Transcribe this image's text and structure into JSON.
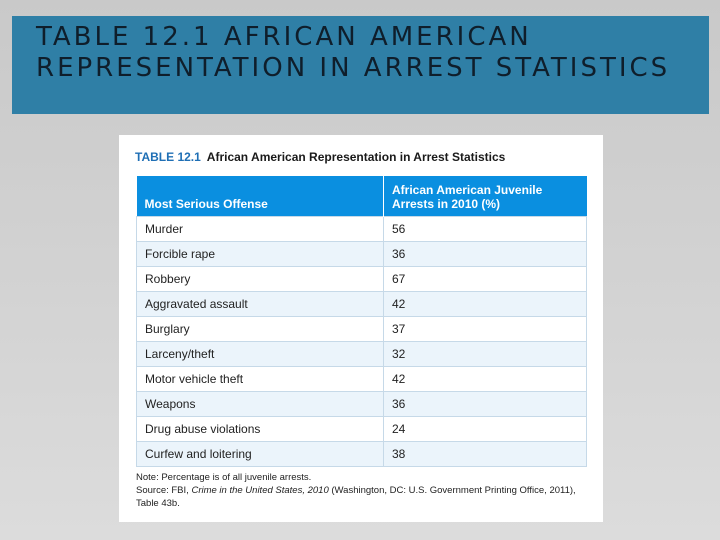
{
  "slide": {
    "title": "TABLE 12.1 AFRICAN AMERICAN REPRESENTATION IN ARREST STATISTICS"
  },
  "table": {
    "number": "TABLE 12.1",
    "caption": "African American Representation in Arrest Statistics",
    "headers": [
      "Most Serious Offense",
      "African American Juvenile Arrests in 2010 (%)"
    ],
    "rows": [
      {
        "offense": "Murder",
        "pct": "56"
      },
      {
        "offense": "Forcible rape",
        "pct": "36"
      },
      {
        "offense": "Robbery",
        "pct": "67"
      },
      {
        "offense": "Aggravated assault",
        "pct": "42"
      },
      {
        "offense": "Burglary",
        "pct": "37"
      },
      {
        "offense": "Larceny/theft",
        "pct": "32"
      },
      {
        "offense": "Motor vehicle theft",
        "pct": "42"
      },
      {
        "offense": "Weapons",
        "pct": "36"
      },
      {
        "offense": "Drug abuse violations",
        "pct": "24"
      },
      {
        "offense": "Curfew and loitering",
        "pct": "38"
      }
    ]
  },
  "notes": {
    "note": "Note: Percentage is of all juvenile arrests.",
    "source_prefix": "Source: FBI,",
    "source_title": "Crime in the United States, 2010",
    "source_suffix": "(Washington, DC: U.S. Government Printing Office, 2011), Table 43b."
  }
}
